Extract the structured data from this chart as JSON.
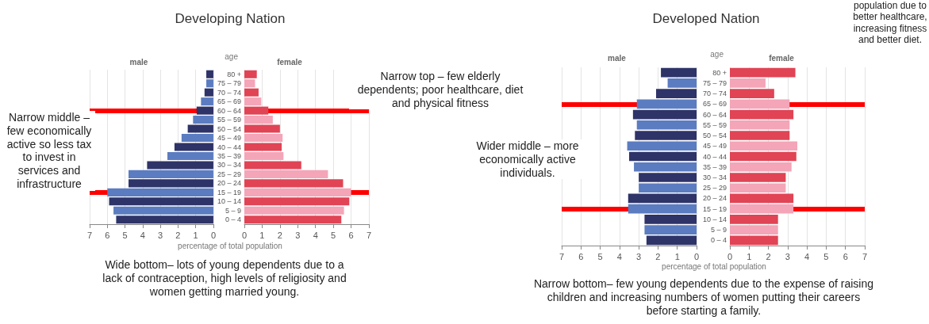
{
  "chart_data": [
    {
      "type": "bar",
      "orientation": "horizontal",
      "title": "Developing Nation",
      "subtitle": "male",
      "categories": [
        "80 +",
        "75 – 79",
        "70 – 74",
        "65 – 69",
        "60 – 64",
        "55 – 59",
        "50 – 54",
        "45 – 49",
        "40 – 44",
        "35 – 39",
        "30 – 34",
        "25 – 29",
        "20 – 24",
        "15 – 19",
        "10 – 14",
        "5 – 9",
        "0 – 4"
      ],
      "values": [
        0.4,
        0.4,
        0.5,
        0.7,
        0.95,
        1.15,
        1.45,
        1.8,
        2.2,
        2.6,
        3.75,
        4.8,
        4.8,
        6.0,
        5.9,
        5.65,
        5.5
      ],
      "colors": [
        "#2e3468",
        "#5b7cc0",
        "#2e3468",
        "#5b7cc0",
        "#2e3468",
        "#5b7cc0",
        "#2e3468",
        "#5b7cc0",
        "#2e3468",
        "#5b7cc0",
        "#2e3468",
        "#5b7cc0",
        "#2e3468",
        "#5b7cc0",
        "#2e3468",
        "#5b7cc0",
        "#2e3468"
      ],
      "xlim": [
        7,
        0
      ],
      "xticks": [
        7,
        6,
        5,
        4,
        3,
        2,
        1,
        0
      ],
      "grid": "x",
      "tick_labels": "x",
      "ref_lines": [
        {
          "axis": "y",
          "value": "60 – 64",
          "color": "#ff0000"
        },
        {
          "axis": "y",
          "value": "15 – 19",
          "color": "#ff0000"
        }
      ],
      "annotations": [
        "Narrow middle – few economically active so less tax to invest in services and infrastructure"
      ]
    },
    {
      "type": "bar",
      "orientation": "horizontal",
      "subtitle": "female",
      "ylabel": "age",
      "xlabel": "percentage of total population",
      "categories": [
        "80 +",
        "75 – 79",
        "70 – 74",
        "65 – 69",
        "60 – 64",
        "55 – 59",
        "50 – 54",
        "45 – 49",
        "40 – 44",
        "35 – 39",
        "30 – 34",
        "25 – 29",
        "20 – 24",
        "15 – 19",
        "10 – 14",
        "5 – 9",
        "0 – 4"
      ],
      "values": [
        0.7,
        0.6,
        0.8,
        0.95,
        1.35,
        1.6,
        2.0,
        2.15,
        2.1,
        2.2,
        3.2,
        4.7,
        5.55,
        6.0,
        5.9,
        5.6,
        5.45
      ],
      "colors": [
        "#e04455",
        "#f4a5b8",
        "#e04455",
        "#f4a5b8",
        "#e04455",
        "#f4a5b8",
        "#e04455",
        "#f4a5b8",
        "#e04455",
        "#f4a5b8",
        "#e04455",
        "#f4a5b8",
        "#e04455",
        "#f4a5b8",
        "#e04455",
        "#f4a5b8",
        "#e04455"
      ],
      "xlim": [
        0,
        7
      ],
      "xticks": [
        0,
        1,
        2,
        3,
        4,
        5,
        6,
        7
      ],
      "grid": "x",
      "ref_lines": [
        {
          "axis": "y",
          "value": "60 – 64",
          "color": "#ff0000"
        },
        {
          "axis": "y",
          "value": "15 – 19",
          "color": "#ff0000"
        }
      ],
      "annotations": [
        "Narrow top – few elderly dependents; poor healthcare, diet and physical fitness",
        "Wide bottom– lots of young dependents due to a lack of contraception, high levels of religiosity and women getting married young."
      ]
    },
    {
      "type": "bar",
      "orientation": "horizontal",
      "title": "Developed Nation",
      "subtitle": "male",
      "categories": [
        "80 +",
        "75 – 79",
        "70 – 74",
        "65 – 69",
        "60 – 64",
        "55 – 59",
        "50 – 54",
        "45 – 49",
        "40 – 44",
        "35 – 39",
        "30 – 34",
        "25 – 29",
        "20 – 24",
        "15 – 19",
        "10 – 14",
        "5 – 9",
        "0 – 4"
      ],
      "values": [
        1.85,
        1.5,
        2.1,
        3.1,
        3.3,
        3.1,
        3.2,
        3.6,
        3.5,
        3.25,
        3.0,
        3.0,
        3.55,
        3.55,
        2.7,
        2.7,
        2.6
      ],
      "colors": [
        "#2e3468",
        "#5b7cc0",
        "#2e3468",
        "#5b7cc0",
        "#2e3468",
        "#5b7cc0",
        "#2e3468",
        "#5b7cc0",
        "#2e3468",
        "#5b7cc0",
        "#2e3468",
        "#5b7cc0",
        "#2e3468",
        "#5b7cc0",
        "#2e3468",
        "#5b7cc0",
        "#2e3468"
      ],
      "xlim": [
        7,
        0
      ],
      "xticks": [
        7,
        6,
        5,
        4,
        3,
        2,
        1,
        0
      ],
      "grid": "x",
      "tick_labels": "x",
      "ref_lines": [
        {
          "axis": "y",
          "value": "65 – 69",
          "color": "#ff0000"
        },
        {
          "axis": "y",
          "value": "15 – 19",
          "color": "#ff0000"
        }
      ],
      "annotations": [
        "Wider middle – more economically active individuals."
      ]
    },
    {
      "type": "bar",
      "orientation": "horizontal",
      "subtitle": "female",
      "ylabel": "age",
      "xlabel": "percentage of total population",
      "categories": [
        "80 +",
        "75 – 79",
        "70 – 74",
        "65 – 69",
        "60 – 64",
        "55 – 59",
        "50 – 54",
        "45 – 49",
        "40 – 44",
        "35 – 39",
        "30 – 34",
        "25 – 29",
        "20 – 24",
        "15 – 19",
        "10 – 14",
        "5 – 9",
        "0 – 4"
      ],
      "values": [
        3.4,
        1.85,
        2.3,
        3.1,
        3.3,
        3.1,
        3.1,
        3.5,
        3.45,
        3.2,
        2.9,
        2.9,
        3.3,
        3.3,
        2.5,
        2.5,
        2.5
      ],
      "colors": [
        "#e04455",
        "#f4a5b8",
        "#e04455",
        "#f4a5b8",
        "#e04455",
        "#f4a5b8",
        "#e04455",
        "#f4a5b8",
        "#e04455",
        "#f4a5b8",
        "#e04455",
        "#f4a5b8",
        "#e04455",
        "#f4a5b8",
        "#e04455",
        "#f4a5b8",
        "#e04455"
      ],
      "xlim": [
        0,
        7
      ],
      "xticks": [
        0,
        1,
        2,
        3,
        4,
        5,
        6,
        7
      ],
      "grid": "x",
      "ref_lines": [
        {
          "axis": "y",
          "value": "65 – 69",
          "color": "#ff0000"
        },
        {
          "axis": "y",
          "value": "15 – 19",
          "color": "#ff0000"
        }
      ],
      "annotations": [
        "population due to better healthcare, increasing fitness and better diet.",
        "Narrow bottom– few young dependents due to the expense of raising children and increasing numbers of women putting their careers before starting a family."
      ]
    }
  ]
}
